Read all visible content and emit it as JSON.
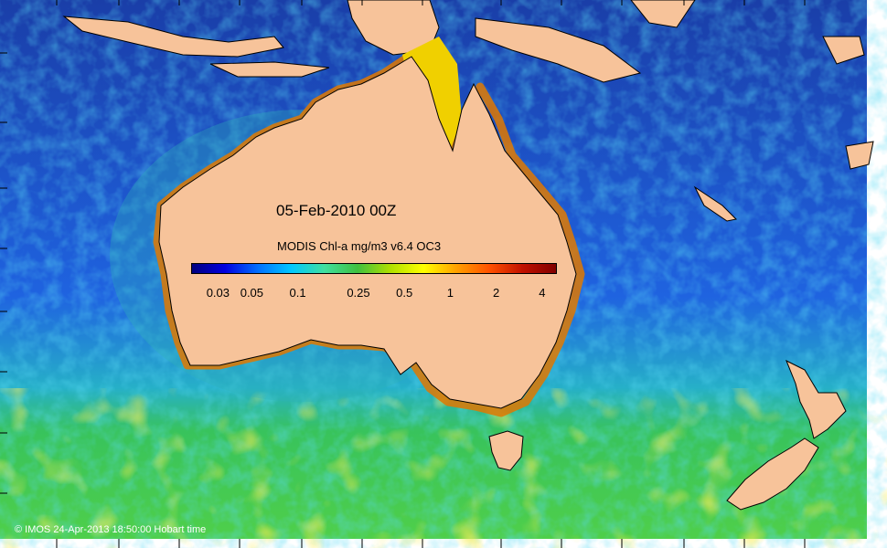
{
  "map": {
    "date_label": "05-Feb-2010 00Z",
    "colorbar": {
      "title": "MODIS Chl-a mg/m3 v6.4 OC3",
      "scale": "log",
      "range": [
        0.02,
        5
      ],
      "ticks": [
        "0.03",
        "0.05",
        "0.1",
        "0.25",
        "0.5",
        "1",
        "2",
        "4"
      ],
      "tick_values": [
        0.03,
        0.05,
        0.1,
        0.25,
        0.5,
        1,
        2,
        4
      ],
      "colors": [
        "#00007f",
        "#0000e0",
        "#0070ff",
        "#00c8ff",
        "#40e0a0",
        "#40c040",
        "#b0e000",
        "#ffff00",
        "#ffa000",
        "#ff5000",
        "#c01000",
        "#800000"
      ]
    },
    "credit": "© IMOS 24-Apr-2013 18:50:00 Hobart time",
    "colors": {
      "land": "#f7c39a",
      "ocean_deep": "#1c3fbf",
      "ocean_mid": "#2a8cff",
      "ocean_south": "#2fc36f",
      "bloom": "#f4d400",
      "coast_high": "#c04000"
    }
  }
}
